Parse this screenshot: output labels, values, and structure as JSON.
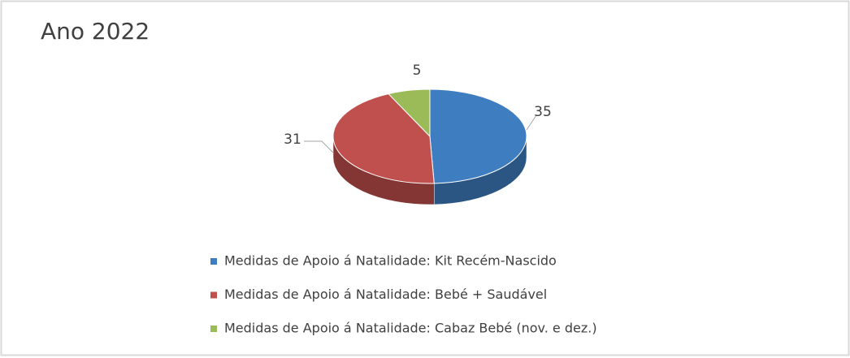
{
  "chart_data": {
    "type": "pie",
    "title": "Ano 2022",
    "categories": [
      "Medidas de Apoio á Natalidade: Kit Recém-Nascido",
      "Medidas de Apoio á Natalidade: Bebé + Saudável",
      "Medidas de Apoio á Natalidade: Cabaz Bebé (nov. e dez.)"
    ],
    "values": [
      35,
      31,
      5
    ],
    "colors": [
      "#3f7dc1",
      "#c0504d",
      "#9bbb59"
    ]
  }
}
